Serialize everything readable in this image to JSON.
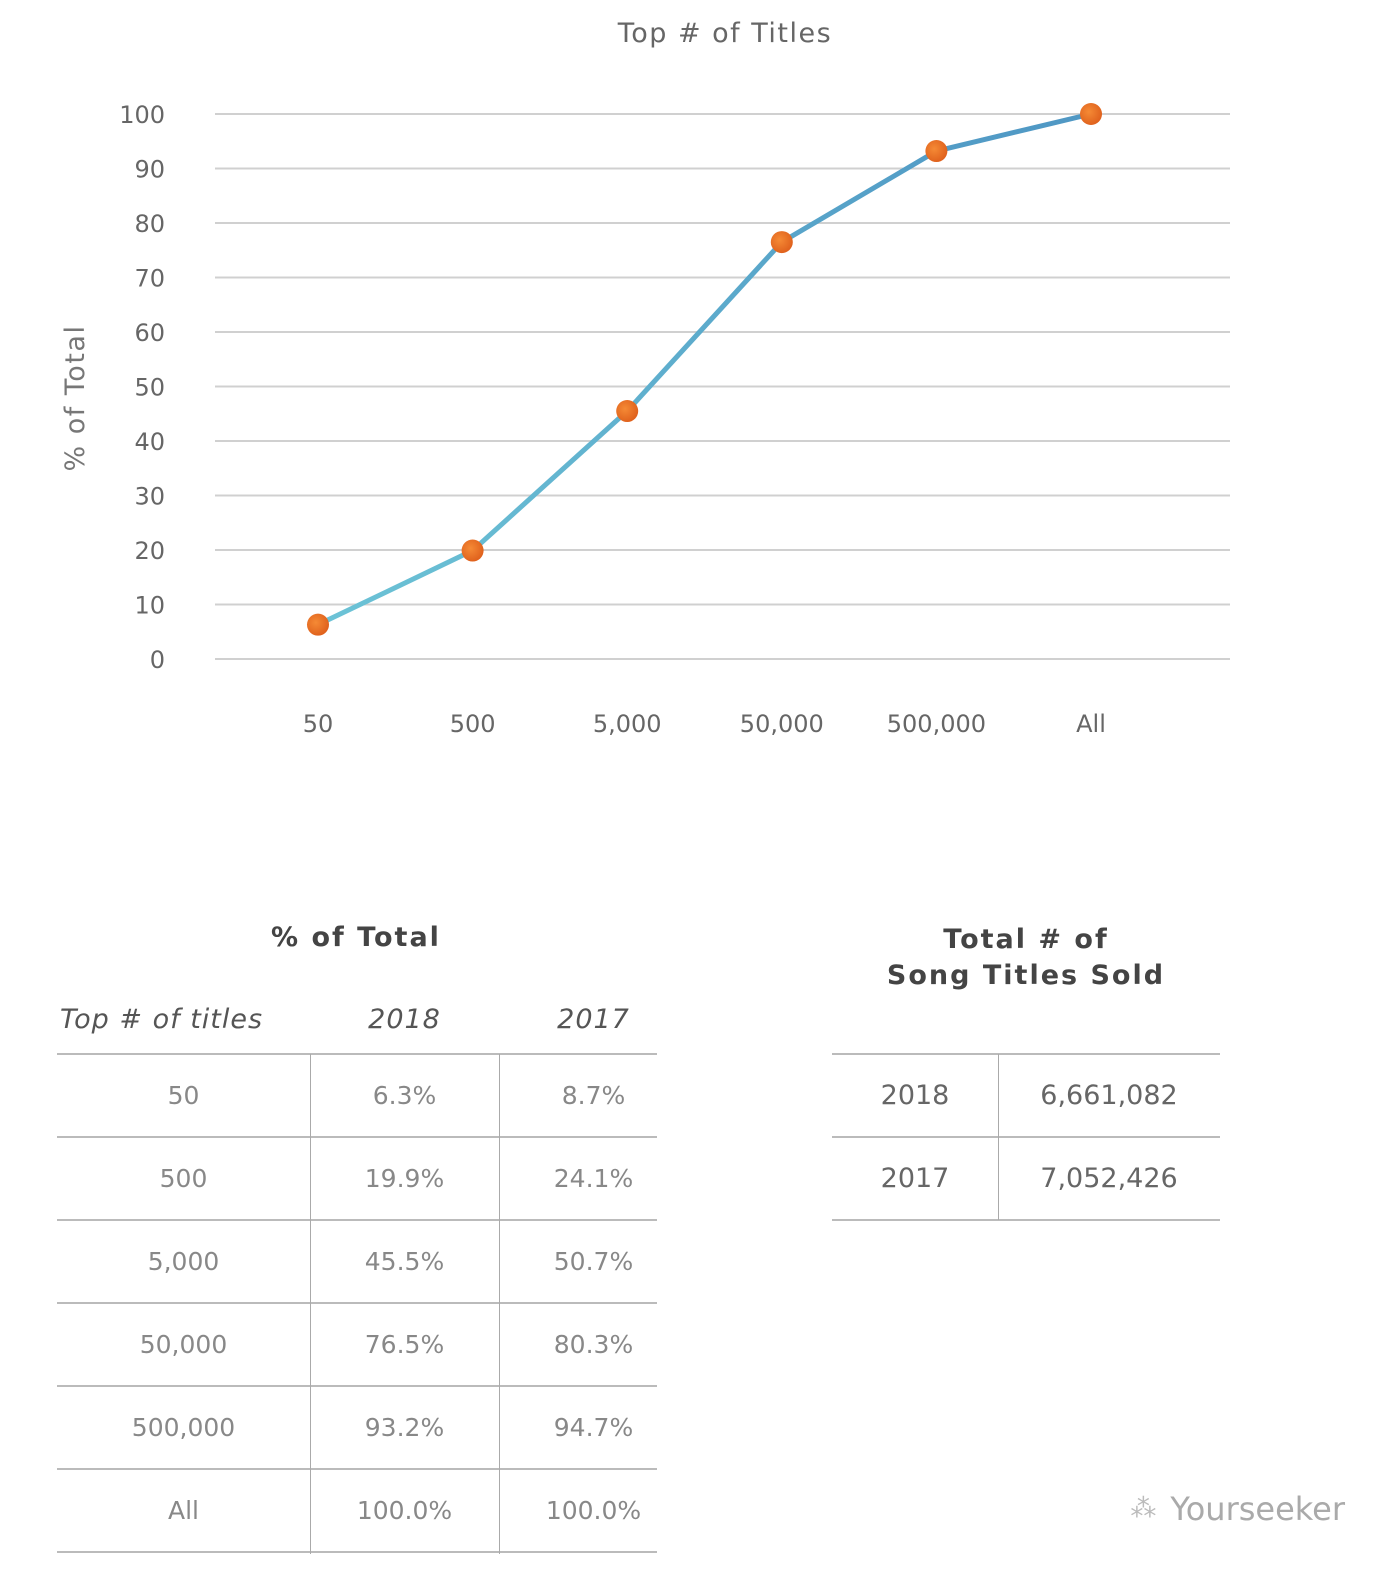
{
  "chart_data": {
    "type": "line",
    "title": "Top # of Titles",
    "xlabel": "",
    "ylabel": "% of Total",
    "categories": [
      "50",
      "500",
      "5,000",
      "50,000",
      "500,000",
      "All"
    ],
    "values": [
      6.3,
      19.9,
      45.5,
      76.5,
      93.2,
      100.0
    ],
    "ylim": [
      0,
      100
    ],
    "yticks": [
      0,
      10,
      20,
      30,
      40,
      50,
      60,
      70,
      80,
      90,
      100
    ],
    "grid": true,
    "colors": {
      "line": "#5fb3d3",
      "marker": "#f07a2a",
      "grid": "#d0d0d0"
    }
  },
  "pct_table": {
    "title": "% of Total",
    "headers": [
      "Top # of titles",
      "2018",
      "2017"
    ],
    "rows": [
      [
        "50",
        "6.3%",
        "8.7%"
      ],
      [
        "500",
        "19.9%",
        "24.1%"
      ],
      [
        "5,000",
        "45.5%",
        "50.7%"
      ],
      [
        "50,000",
        "76.5%",
        "80.3%"
      ],
      [
        "500,000",
        "93.2%",
        "94.7%"
      ],
      [
        "All",
        "100.0%",
        "100.0%"
      ]
    ]
  },
  "total_table": {
    "title_line1": "Total # of",
    "title_line2": "Song Titles Sold",
    "rows": [
      [
        "2018",
        "6,661,082"
      ],
      [
        "2017",
        "7,052,426"
      ]
    ]
  },
  "watermark": "Yourseeker"
}
